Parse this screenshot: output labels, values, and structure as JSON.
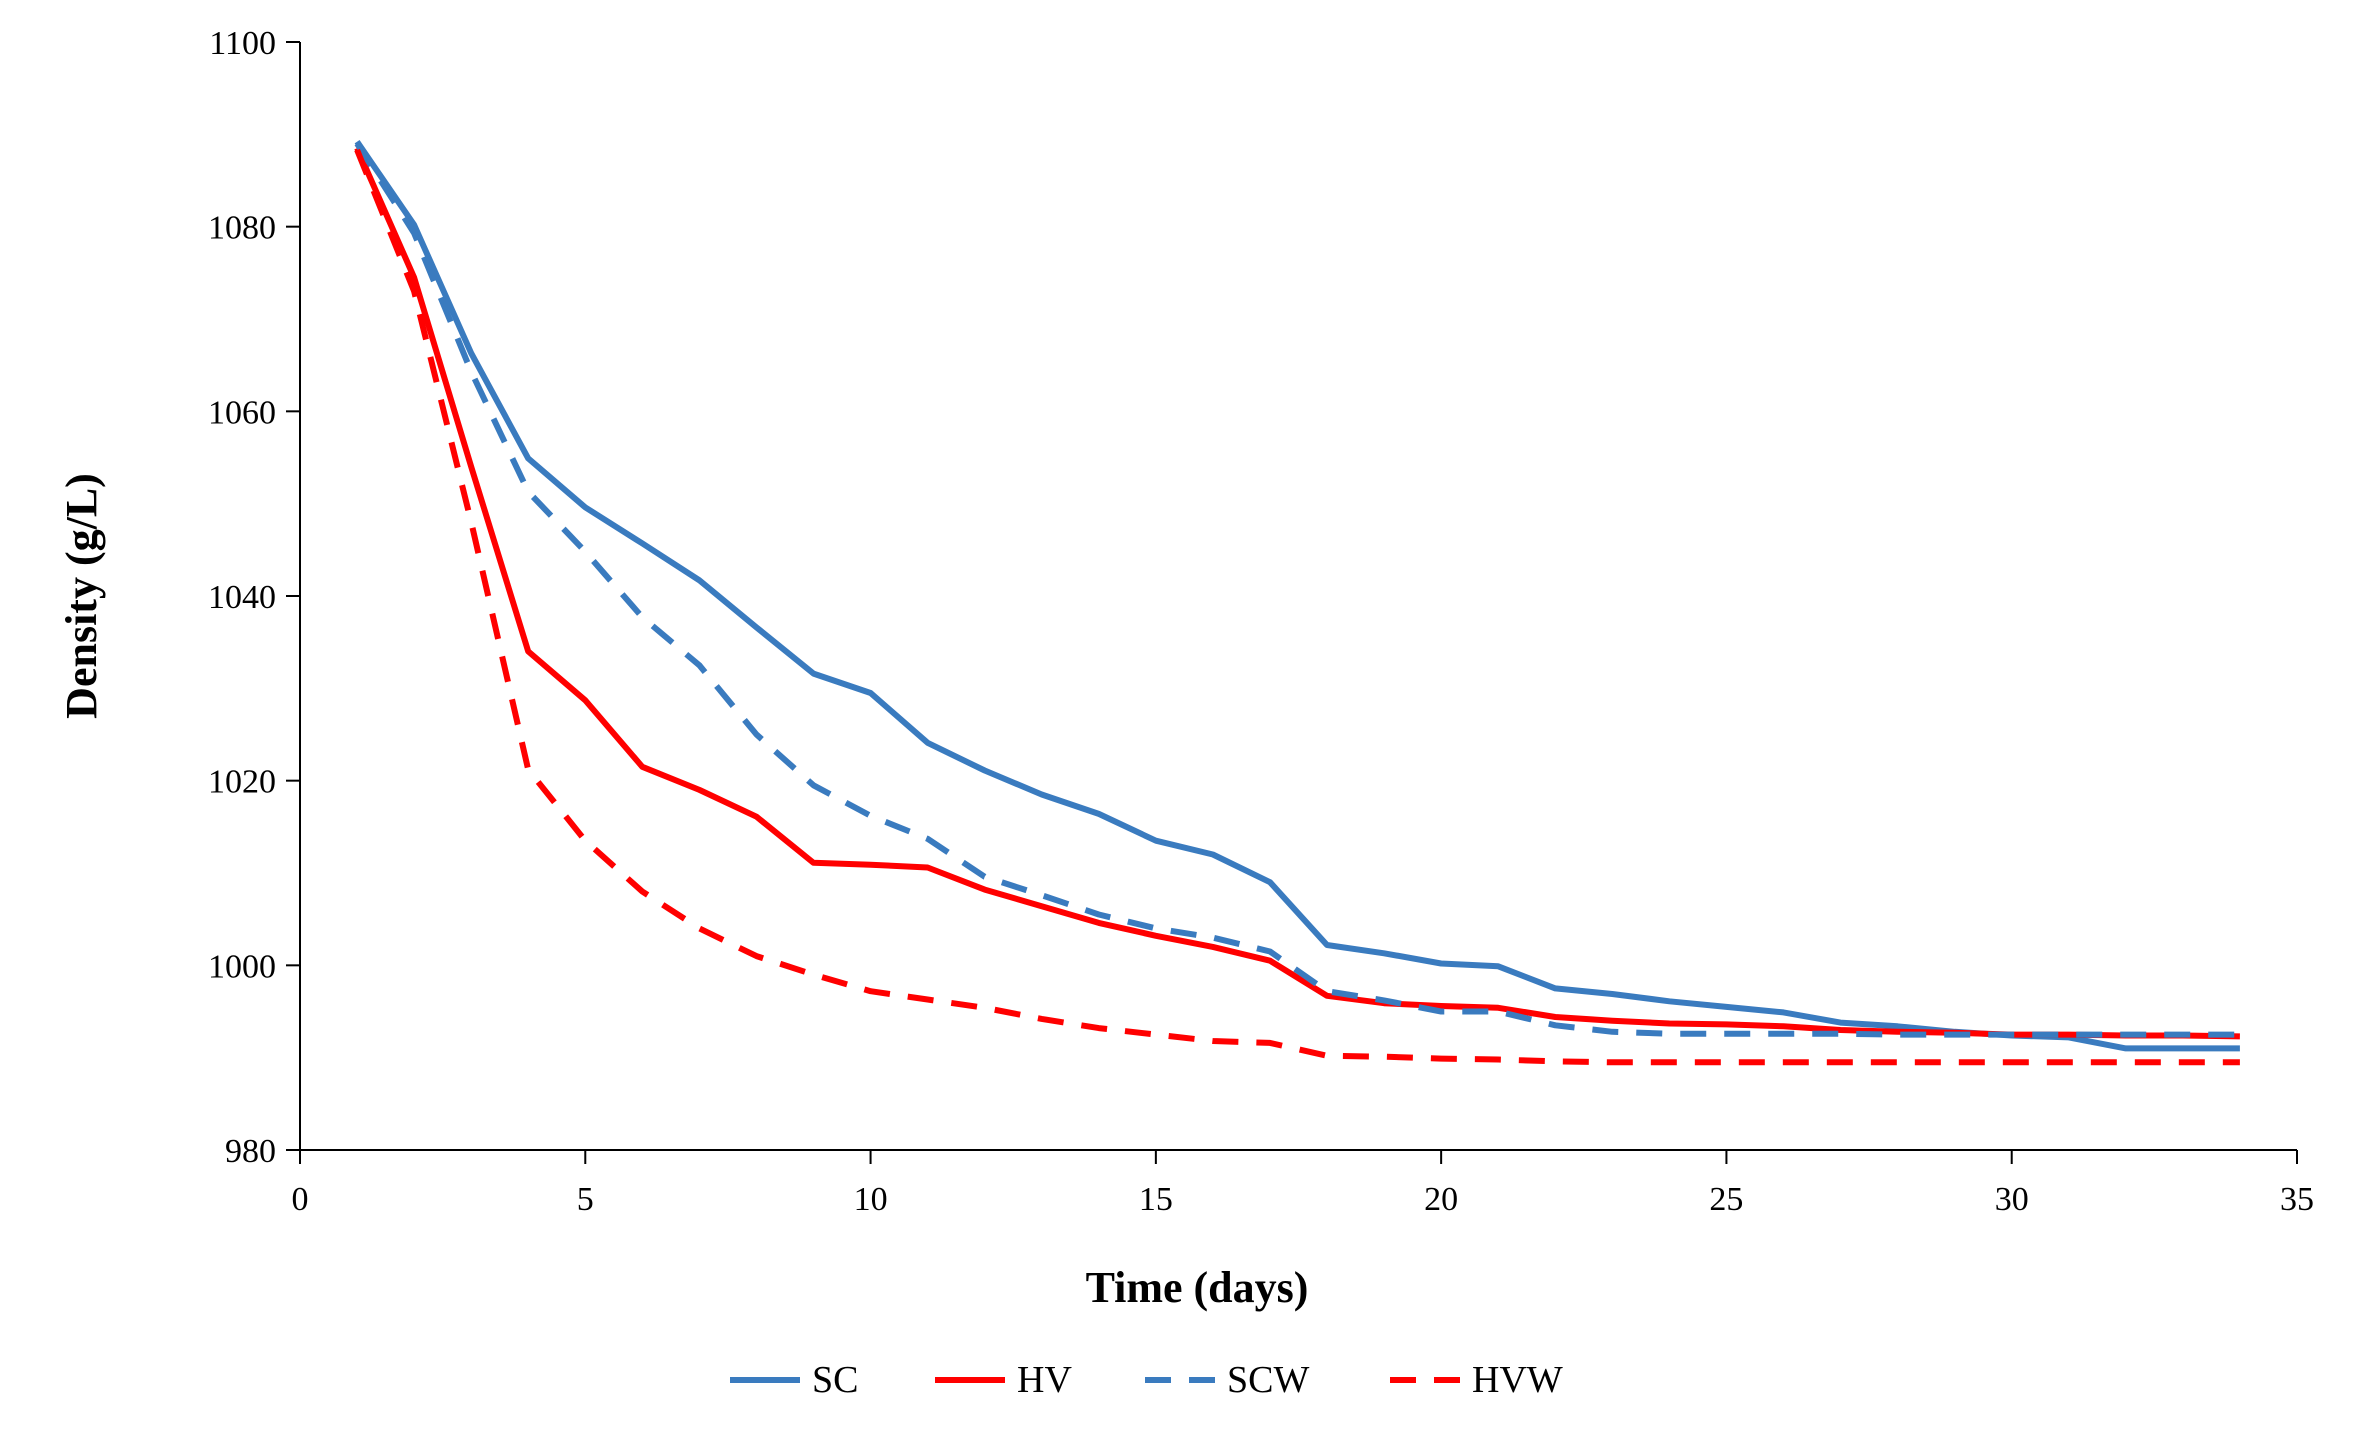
{
  "chart_data": {
    "type": "line",
    "title": "",
    "xlabel": "Time (days)",
    "ylabel": "Density (g/L)",
    "xlim": [
      0,
      35
    ],
    "ylim": [
      980,
      1100
    ],
    "x_ticks": [
      "0",
      "5",
      "10",
      "15",
      "20",
      "25",
      "30",
      "35"
    ],
    "y_ticks": [
      "980",
      "1000",
      "1020",
      "1040",
      "1060",
      "1080",
      "1100"
    ],
    "grid": false,
    "legend_position": "bottom-center",
    "series": [
      {
        "name": "SC",
        "color": "#3a7bbf",
        "dash": "solid",
        "x": [
          1,
          2,
          3,
          4,
          5,
          6,
          7,
          8,
          9,
          10,
          11,
          12,
          13,
          14,
          15,
          16,
          17,
          18,
          19,
          20,
          21,
          22,
          23,
          24,
          25,
          26,
          27,
          28,
          29,
          30,
          31,
          32,
          33,
          34
        ],
        "y": [
          1089.2,
          1080.2,
          1066.3,
          1054.9,
          1049.6,
          1045.7,
          1041.7,
          1036.6,
          1031.6,
          1029.5,
          1024.1,
          1021.1,
          1018.5,
          1016.4,
          1013.5,
          1012.0,
          1009.0,
          1002.2,
          1001.3,
          1000.2,
          999.9,
          997.5,
          996.9,
          996.1,
          995.5,
          994.9,
          993.8,
          993.4,
          992.8,
          992.4,
          992.2,
          991.0,
          991.0,
          991.0
        ]
      },
      {
        "name": "HV",
        "color": "#ff0000",
        "dash": "solid",
        "x": [
          1,
          2,
          3,
          4,
          5,
          6,
          7,
          8,
          9,
          10,
          11,
          12,
          13,
          14,
          15,
          16,
          17,
          18,
          19,
          20,
          21,
          22,
          23,
          24,
          25,
          26,
          27,
          28,
          29,
          30,
          31,
          32,
          33,
          34
        ],
        "y": [
          1088.5,
          1074.5,
          1054.0,
          1034.0,
          1028.7,
          1021.5,
          1019.0,
          1016.1,
          1011.1,
          1010.9,
          1010.6,
          1008.2,
          1006.4,
          1004.6,
          1003.2,
          1002.0,
          1000.5,
          996.7,
          995.9,
          995.6,
          995.4,
          994.4,
          994.0,
          993.7,
          993.6,
          993.4,
          993.0,
          992.8,
          992.7,
          992.5,
          992.5,
          992.4,
          992.4,
          992.3
        ]
      },
      {
        "name": "SCW",
        "color": "#3a7bbf",
        "dash": "dashed",
        "x": [
          1,
          2,
          3,
          4,
          5,
          6,
          7,
          8,
          9,
          10,
          11,
          12,
          13,
          14,
          15,
          16,
          17,
          18,
          19,
          20,
          21,
          22,
          23,
          24,
          25,
          26,
          27,
          28,
          29,
          30,
          31,
          32,
          33,
          34
        ],
        "y": [
          1089.0,
          1079.3,
          1064.3,
          1051.3,
          1044.8,
          1037.7,
          1032.5,
          1025.0,
          1019.5,
          1016.2,
          1013.7,
          1009.6,
          1007.6,
          1005.5,
          1004.0,
          1003.0,
          1001.5,
          997.2,
          996.2,
          995.0,
          995.0,
          993.5,
          992.8,
          992.6,
          992.6,
          992.6,
          992.6,
          992.5,
          992.5,
          992.5,
          992.5,
          992.5,
          992.5,
          992.5
        ]
      },
      {
        "name": "HVW",
        "color": "#ff0000",
        "dash": "dashed",
        "x": [
          1,
          2,
          3,
          4,
          5,
          6,
          7,
          8,
          9,
          10,
          11,
          12,
          13,
          14,
          15,
          16,
          17,
          18,
          19,
          20,
          21,
          22,
          23,
          24,
          25,
          26,
          27,
          28,
          29,
          30,
          31,
          32,
          33,
          34
        ],
        "y": [
          1088.3,
          1073.0,
          1048.0,
          1021.2,
          1013.5,
          1008.0,
          1004.0,
          1001.0,
          999.0,
          997.2,
          996.3,
          995.4,
          994.2,
          993.2,
          992.5,
          991.8,
          991.6,
          990.2,
          990.1,
          989.9,
          989.8,
          989.6,
          989.5,
          989.5,
          989.5,
          989.5,
          989.5,
          989.5,
          989.5,
          989.5,
          989.5,
          989.5,
          989.5,
          989.5
        ]
      }
    ]
  }
}
